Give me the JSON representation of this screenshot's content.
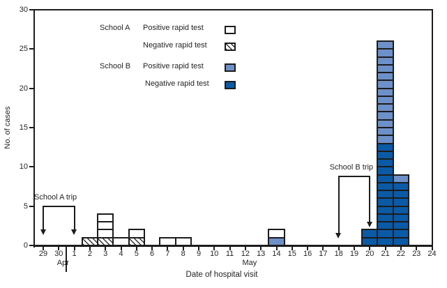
{
  "chart_data": {
    "type": "bar",
    "stacked": true,
    "title": "",
    "xlabel": "Date of hospital visit",
    "ylabel": "No. of cases",
    "ylim": [
      0,
      30
    ],
    "yticks": [
      0,
      5,
      10,
      15,
      20,
      25,
      30
    ],
    "categories": [
      "29",
      "30",
      "1",
      "2",
      "3",
      "4",
      "5",
      "6",
      "7",
      "8",
      "9",
      "10",
      "11",
      "12",
      "13",
      "14",
      "15",
      "16",
      "17",
      "18",
      "19",
      "20",
      "21",
      "22",
      "23",
      "24"
    ],
    "months": [
      {
        "label": "Apr",
        "anchor_date": "30"
      },
      {
        "label": "May",
        "anchor_date": "12"
      }
    ],
    "month_separator_between": [
      "30",
      "1"
    ],
    "grid": false,
    "series": [
      {
        "key": "school_b_negative",
        "name": "School B Negative rapid test",
        "fill": "#0b5aa6",
        "values": [
          0,
          0,
          0,
          0,
          0,
          0,
          0,
          0,
          0,
          0,
          0,
          0,
          0,
          0,
          0,
          0,
          0,
          0,
          0,
          0,
          0,
          2,
          13,
          8,
          0,
          0
        ]
      },
      {
        "key": "school_b_positive",
        "name": "School B Positive rapid test",
        "fill": "#6e90c8",
        "values": [
          0,
          0,
          0,
          0,
          0,
          0,
          0,
          0,
          0,
          0,
          0,
          0,
          0,
          0,
          0,
          1,
          0,
          0,
          0,
          0,
          0,
          0,
          13,
          1,
          0,
          0
        ]
      },
      {
        "key": "school_a_negative",
        "name": "School A Negative rapid test",
        "fill": "hatch",
        "values": [
          0,
          0,
          0,
          1,
          1,
          0,
          1,
          0,
          0,
          0,
          0,
          0,
          0,
          0,
          0,
          0,
          0,
          0,
          0,
          0,
          0,
          0,
          0,
          0,
          0,
          0
        ]
      },
      {
        "key": "school_a_positive",
        "name": "School A Positive rapid test",
        "fill": "#ffffff",
        "values": [
          0,
          0,
          0,
          0,
          3,
          1,
          1,
          0,
          1,
          1,
          0,
          0,
          0,
          0,
          0,
          1,
          0,
          0,
          0,
          0,
          0,
          0,
          0,
          0,
          0,
          0
        ]
      }
    ],
    "annotations": [
      {
        "label": "School A trip",
        "from_date": "29",
        "to_date": "1",
        "bracket_value": 5.0,
        "arrow_end_values": [
          1.3,
          1.3
        ]
      },
      {
        "label": "School B trip",
        "from_date": "18",
        "to_date": "20",
        "bracket_value": 8.8,
        "arrow_end_values": [
          0.9,
          2.3
        ]
      }
    ]
  },
  "legend": {
    "groups": [
      {
        "school": "School A",
        "items": [
          {
            "label": "Positive rapid test",
            "series": "school_a_positive"
          },
          {
            "label": "Negative rapid test",
            "series": "school_a_negative"
          }
        ]
      },
      {
        "school": "School B",
        "items": [
          {
            "label": "Positive rapid test",
            "series": "school_b_positive"
          },
          {
            "label": "Negative rapid test",
            "series": "school_b_negative"
          }
        ]
      }
    ]
  },
  "colors": {
    "line": "#1c1c1c",
    "text": "#231f20",
    "school_b_positive": "#6e90c8",
    "school_b_negative": "#0b5aa6",
    "school_a_positive": "#ffffff"
  }
}
